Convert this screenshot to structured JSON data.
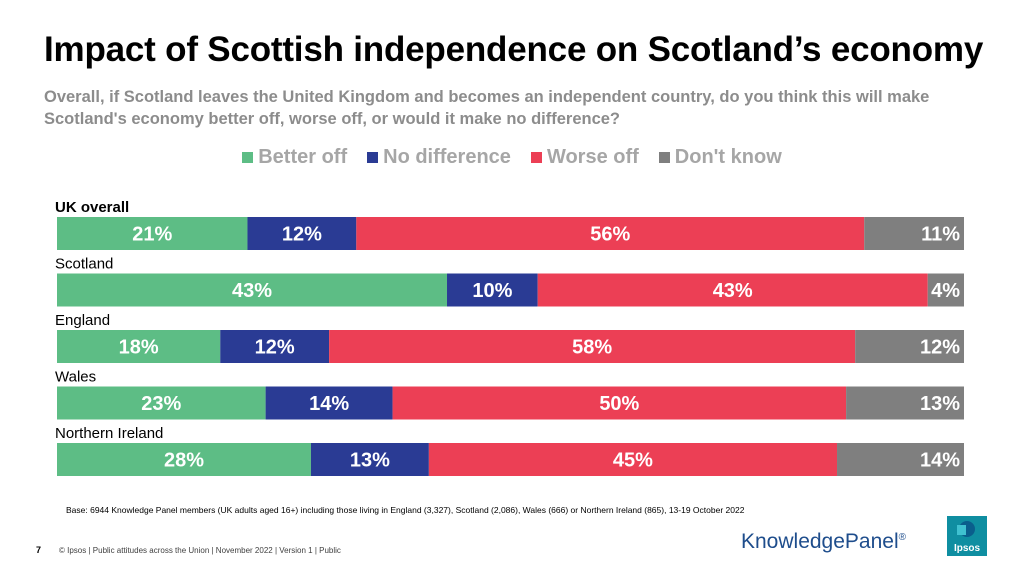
{
  "header": {
    "title": "Impact of Scottish independence on Scotland’s economy",
    "subtitle": "Overall, if Scotland leaves the United Kingdom and becomes an independent country, do you think this will make Scotland's economy better off, worse off, or would it make no difference?"
  },
  "legend": [
    {
      "label": "Better off",
      "color": "#5dbd85"
    },
    {
      "label": "No difference",
      "color": "#2a3b94"
    },
    {
      "label": "Worse off",
      "color": "#ec3f55"
    },
    {
      "label": "Don't know",
      "color": "#7f7f7f"
    }
  ],
  "chart_data": {
    "type": "bar",
    "orientation": "horizontal",
    "stacked": true,
    "unit": "%",
    "categories": [
      "UK overall",
      "Scotland",
      "England",
      "Wales",
      "Northern Ireland"
    ],
    "series": [
      {
        "name": "Better off",
        "color": "#5dbd85",
        "values": [
          21,
          43,
          18,
          23,
          28
        ]
      },
      {
        "name": "No difference",
        "color": "#2a3b94",
        "values": [
          12,
          10,
          12,
          14,
          13
        ]
      },
      {
        "name": "Worse off",
        "color": "#ec3f55",
        "values": [
          56,
          43,
          58,
          50,
          45
        ]
      },
      {
        "name": "Don't know",
        "color": "#7f7f7f",
        "values": [
          11,
          4,
          12,
          13,
          14
        ]
      }
    ],
    "legend_position": "top",
    "grid": false
  },
  "notes": {
    "base": "Base: 6944 Knowledge Panel members (UK adults aged 16+) including those living in England (3,327), Scotland (2,086), Wales (666) or Northern Ireland (865), 13-19 October 2022"
  },
  "footer": {
    "page_number": "7",
    "text": "© Ipsos | Public attitudes across the Union | November 2022 | Version 1 | Public",
    "knowledgepanel_logo": "KnowledgePanel",
    "knowledgepanel_reg": "®",
    "ipsos_logo": "Ipsos"
  }
}
